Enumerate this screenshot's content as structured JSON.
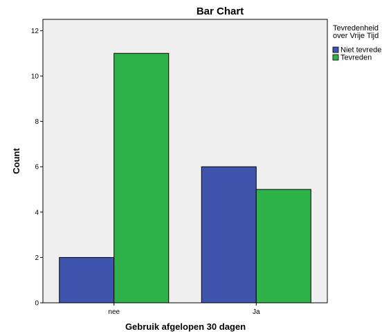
{
  "chart_data": {
    "type": "bar",
    "title": "Bar Chart",
    "xlabel": "Gebruik afgelopen 30 dagen",
    "ylabel": "Count",
    "categories": [
      "nee",
      "Ja"
    ],
    "ylim": [
      0,
      12.5
    ],
    "yticks": [
      0,
      2,
      4,
      6,
      8,
      10,
      12
    ],
    "grid": false,
    "legend": {
      "title_lines": [
        "Tevredenheid",
        "over Vrije Tijd"
      ],
      "placement": "right"
    },
    "series": [
      {
        "name": "Niet tevreden",
        "color": "#3f55ad",
        "values": [
          2,
          6
        ]
      },
      {
        "name": "Tevreden",
        "color": "#2fb24a",
        "values": [
          11,
          5
        ]
      }
    ],
    "plot_background": "#efefef"
  }
}
